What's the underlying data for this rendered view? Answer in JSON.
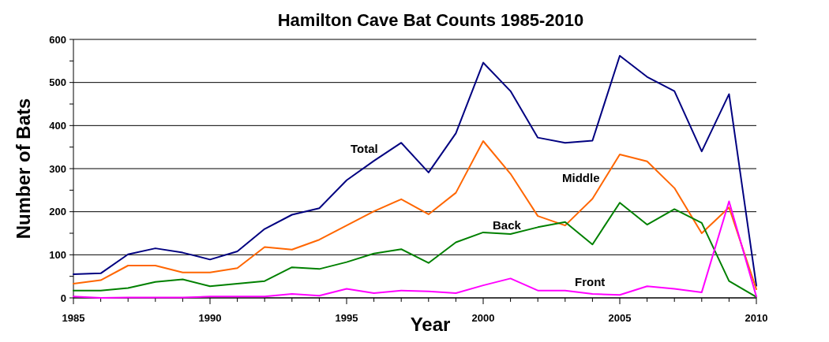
{
  "chart_data": {
    "type": "line",
    "title": "Hamilton Cave Bat Counts 1985-2010",
    "xlabel": "Year",
    "ylabel": "Number of Bats",
    "x": [
      1985,
      1986,
      1987,
      1988,
      1989,
      1990,
      1991,
      1992,
      1993,
      1994,
      1995,
      1996,
      1997,
      1998,
      1999,
      2000,
      2001,
      2002,
      2003,
      2004,
      2005,
      2006,
      2007,
      2008,
      2009,
      2010
    ],
    "series": [
      {
        "name": "Total",
        "color": "#000080",
        "values": [
          55,
          57,
          101,
          115,
          105,
          89,
          108,
          160,
          193,
          208,
          273,
          318,
          360,
          291,
          382,
          546,
          480,
          372,
          360,
          365,
          562,
          513,
          480,
          340,
          473,
          28
        ]
      },
      {
        "name": "Middle",
        "color": "#ff6600",
        "values": [
          33,
          41,
          75,
          75,
          59,
          59,
          69,
          118,
          112,
          135,
          168,
          201,
          229,
          194,
          244,
          364,
          288,
          190,
          168,
          230,
          333,
          317,
          255,
          150,
          210,
          20
        ]
      },
      {
        "name": "Back",
        "color": "#008000",
        "values": [
          17,
          17,
          23,
          37,
          43,
          27,
          33,
          39,
          71,
          67,
          83,
          103,
          113,
          81,
          129,
          152,
          148,
          164,
          176,
          124,
          221,
          170,
          206,
          174,
          39,
          2
        ]
      },
      {
        "name": "Front",
        "color": "#ff00ff",
        "values": [
          3,
          0,
          1,
          1,
          1,
          3,
          3,
          3,
          9,
          5,
          21,
          11,
          17,
          15,
          11,
          29,
          45,
          17,
          17,
          9,
          7,
          27,
          21,
          13,
          224,
          3
        ]
      }
    ],
    "xlim": [
      1985,
      2010
    ],
    "xticks": [
      1985,
      {
        "value": 1986,
        "label": null
      },
      {
        "value": 1987,
        "label": null
      },
      {
        "value": 1988,
        "label": null
      },
      {
        "value": 1989,
        "label": null
      },
      1990,
      {
        "value": 1991,
        "label": null
      },
      {
        "value": 1992,
        "label": null
      },
      {
        "value": 1993,
        "label": null
      },
      {
        "value": 1994,
        "label": null
      },
      1995,
      {
        "value": 1996,
        "label": null
      },
      {
        "value": 1997,
        "label": null
      },
      {
        "value": 1998,
        "label": null
      },
      {
        "value": 1999,
        "label": null
      },
      2000,
      {
        "value": 2001,
        "label": null
      },
      {
        "value": 2002,
        "label": null
      },
      {
        "value": 2003,
        "label": null
      },
      {
        "value": 2004,
        "label": null
      },
      2005,
      {
        "value": 2006,
        "label": null
      },
      {
        "value": 2007,
        "label": null
      },
      {
        "value": 2008,
        "label": null
      },
      {
        "value": 2009,
        "label": null
      },
      2010
    ],
    "ylim": [
      0,
      600
    ],
    "yticks": [
      0,
      {
        "value": 50,
        "label": null
      },
      100,
      {
        "value": 150,
        "label": null
      },
      200,
      {
        "value": 250,
        "label": null
      },
      300,
      {
        "value": 350,
        "label": null
      },
      400,
      {
        "value": 450,
        "label": null
      },
      500,
      {
        "value": 550,
        "label": null
      },
      600
    ],
    "grid": "y",
    "marker": "none",
    "line_style": "solid"
  }
}
